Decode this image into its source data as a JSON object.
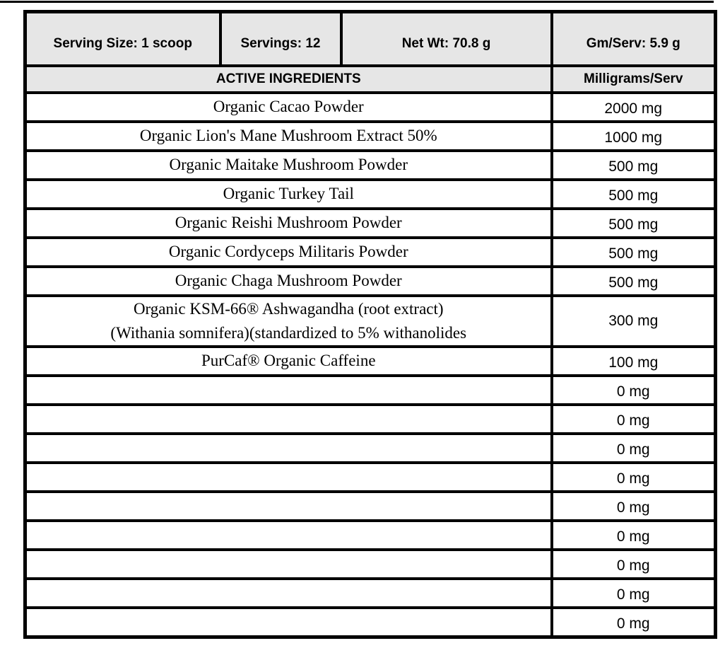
{
  "header": {
    "serving_size": "Serving Size: 1 scoop",
    "servings": "Servings: 12",
    "net_wt": "Net Wt: 70.8 g",
    "gm_serv": "Gm/Serv: 5.9 g"
  },
  "columns": {
    "ingredients": "ACTIVE INGREDIENTS",
    "amount": "Milligrams/Serv"
  },
  "rows": [
    {
      "name": "Organic Cacao Powder",
      "amount": "2000 mg"
    },
    {
      "name": "Organic Lion's Mane Mushroom Extract 50%",
      "amount": "1000 mg"
    },
    {
      "name": "Organic Maitake Mushroom Powder",
      "amount": "500 mg"
    },
    {
      "name": "Organic Turkey Tail",
      "amount": "500 mg"
    },
    {
      "name": "Organic Reishi Mushroom Powder",
      "amount": "500 mg"
    },
    {
      "name": "Organic Cordyceps Militaris Powder",
      "amount": "500 mg"
    },
    {
      "name": "Organic Chaga Mushroom Powder",
      "amount": "500 mg"
    },
    {
      "name": "Organic KSM-66® Ashwagandha (root extract)",
      "name2": "(Withania somnifera)(standardized to 5% withanolides",
      "amount": "300 mg"
    },
    {
      "name": "PurCaf® Organic Caffeine",
      "amount": "100 mg"
    },
    {
      "name": "",
      "amount": "0 mg"
    },
    {
      "name": "",
      "amount": "0 mg"
    },
    {
      "name": "",
      "amount": "0 mg"
    },
    {
      "name": "",
      "amount": "0 mg"
    },
    {
      "name": "",
      "amount": "0 mg"
    },
    {
      "name": "",
      "amount": "0 mg"
    },
    {
      "name": "",
      "amount": "0 mg"
    },
    {
      "name": "",
      "amount": "0 mg"
    },
    {
      "name": "",
      "amount": "0 mg"
    }
  ],
  "colors": {
    "header_bg": "#e6e6e6",
    "border": "#000000"
  }
}
